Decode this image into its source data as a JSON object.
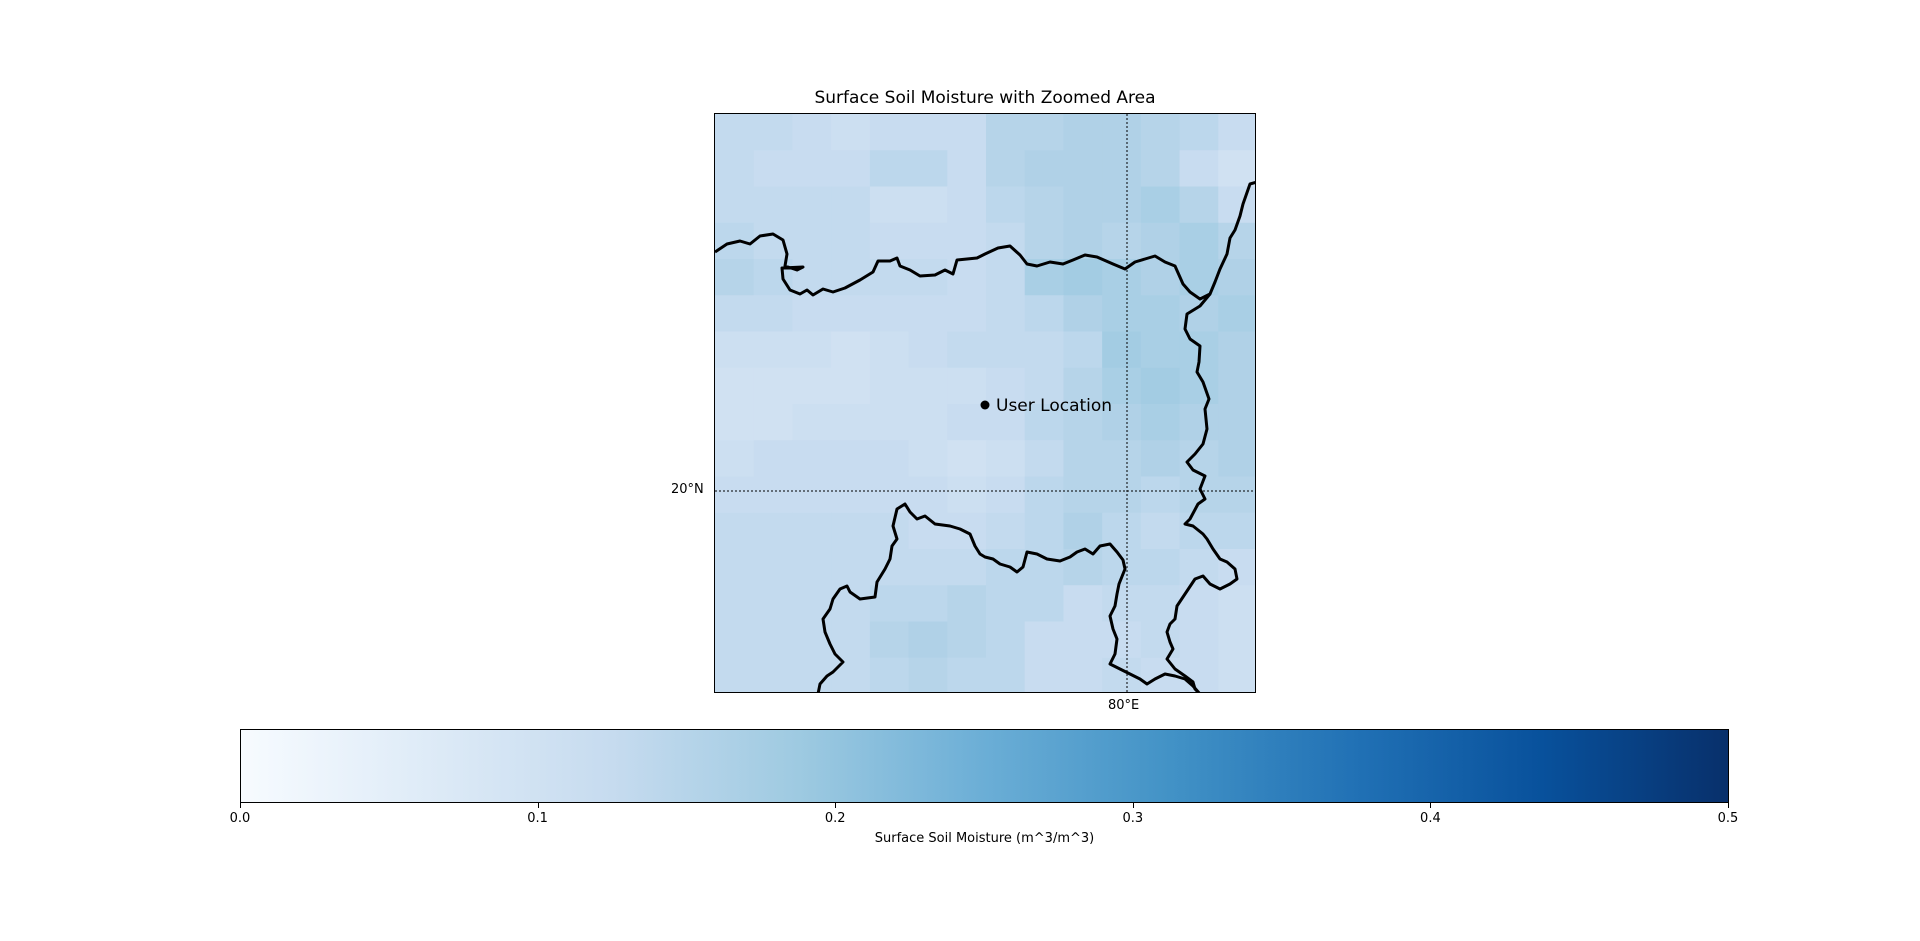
{
  "title": "Surface Soil Moisture with Zoomed Area",
  "map": {
    "lat_label": "20°N",
    "lon_label": "80°E",
    "marker_label": "User Location",
    "cmap": "Blues",
    "vmin": 0.0,
    "vmax": 0.5,
    "grid": [
      [
        0.13,
        0.13,
        0.12,
        0.11,
        0.12,
        0.12,
        0.12,
        0.15,
        0.15,
        0.16,
        0.16,
        0.15,
        0.14,
        0.12
      ],
      [
        0.13,
        0.12,
        0.12,
        0.12,
        0.14,
        0.14,
        0.12,
        0.15,
        0.16,
        0.16,
        0.16,
        0.15,
        0.12,
        0.1
      ],
      [
        0.13,
        0.13,
        0.13,
        0.13,
        0.11,
        0.11,
        0.12,
        0.14,
        0.15,
        0.16,
        0.16,
        0.17,
        0.15,
        0.12
      ],
      [
        0.14,
        0.13,
        0.13,
        0.13,
        0.12,
        0.12,
        0.12,
        0.13,
        0.15,
        0.16,
        0.15,
        0.16,
        0.17,
        0.15
      ],
      [
        0.15,
        0.14,
        0.13,
        0.13,
        0.13,
        0.13,
        0.12,
        0.13,
        0.17,
        0.18,
        0.17,
        0.16,
        0.17,
        0.16
      ],
      [
        0.13,
        0.13,
        0.12,
        0.12,
        0.12,
        0.12,
        0.12,
        0.13,
        0.14,
        0.16,
        0.17,
        0.17,
        0.16,
        0.17
      ],
      [
        0.11,
        0.11,
        0.11,
        0.1,
        0.11,
        0.12,
        0.13,
        0.13,
        0.13,
        0.14,
        0.18,
        0.17,
        0.17,
        0.16
      ],
      [
        0.1,
        0.1,
        0.1,
        0.1,
        0.11,
        0.11,
        0.11,
        0.12,
        0.13,
        0.15,
        0.17,
        0.18,
        0.17,
        0.16
      ],
      [
        0.1,
        0.1,
        0.11,
        0.11,
        0.11,
        0.11,
        0.12,
        0.12,
        0.14,
        0.15,
        0.16,
        0.17,
        0.16,
        0.16
      ],
      [
        0.11,
        0.12,
        0.12,
        0.12,
        0.12,
        0.11,
        0.1,
        0.11,
        0.13,
        0.15,
        0.15,
        0.16,
        0.15,
        0.16
      ],
      [
        0.12,
        0.12,
        0.12,
        0.12,
        0.12,
        0.12,
        0.11,
        0.12,
        0.14,
        0.15,
        0.15,
        0.14,
        0.15,
        0.15
      ],
      [
        0.13,
        0.13,
        0.13,
        0.13,
        0.13,
        0.12,
        0.12,
        0.13,
        0.14,
        0.16,
        0.14,
        0.13,
        0.14,
        0.14
      ],
      [
        0.13,
        0.13,
        0.13,
        0.13,
        0.13,
        0.13,
        0.13,
        0.14,
        0.14,
        0.15,
        0.14,
        0.14,
        0.13,
        0.12
      ],
      [
        0.13,
        0.13,
        0.13,
        0.13,
        0.14,
        0.14,
        0.15,
        0.14,
        0.14,
        0.12,
        0.13,
        0.13,
        0.12,
        0.11
      ],
      [
        0.13,
        0.13,
        0.13,
        0.13,
        0.15,
        0.16,
        0.15,
        0.14,
        0.12,
        0.12,
        0.12,
        0.13,
        0.12,
        0.11
      ],
      [
        0.13,
        0.13,
        0.13,
        0.13,
        0.14,
        0.15,
        0.14,
        0.14,
        0.12,
        0.12,
        0.13,
        0.12,
        0.12,
        0.11
      ]
    ]
  },
  "colorbar": {
    "label": "Surface Soil Moisture (m^3/m^3)",
    "ticks": [
      "0.0",
      "0.1",
      "0.2",
      "0.3",
      "0.4",
      "0.5"
    ],
    "tick_values": [
      0.0,
      0.1,
      0.2,
      0.3,
      0.4,
      0.5
    ]
  }
}
